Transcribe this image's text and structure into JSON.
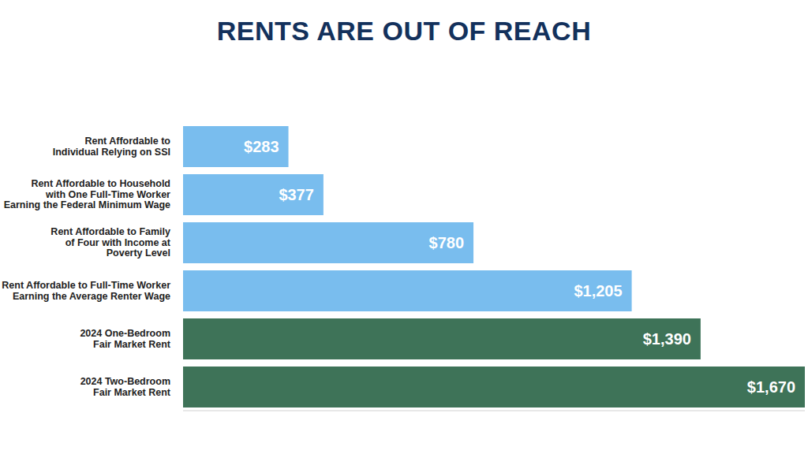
{
  "chart_data": {
    "type": "bar",
    "title": "RENTS ARE OUT OF REACH",
    "orientation": "horizontal",
    "categories": [
      "Rent Affordable to\nIndividual Relying on SSI",
      "Rent Affordable to Household\nwith One Full-Time Worker\nEarning the Federal Minimum Wage",
      "Rent Affordable to Family\nof Four with Income at\nPoverty Level",
      "Rent Affordable to Full-Time Worker\nEarning the Average Renter Wage",
      "2024 One-Bedroom\nFair Market Rent",
      "2024 Two-Bedroom\nFair Market Rent"
    ],
    "values": [
      283,
      377,
      780,
      1205,
      1390,
      1670
    ],
    "value_labels": [
      "$283",
      "$377",
      "$780",
      "$1,205",
      "$1,390",
      "$1,670"
    ],
    "colors": [
      "#79bdee",
      "#79bdee",
      "#79bdee",
      "#79bdee",
      "#3e7358",
      "#3e7358"
    ],
    "xlim": [
      0,
      1670
    ],
    "data_labels": true,
    "tick_labels": "y",
    "grid": false
  }
}
